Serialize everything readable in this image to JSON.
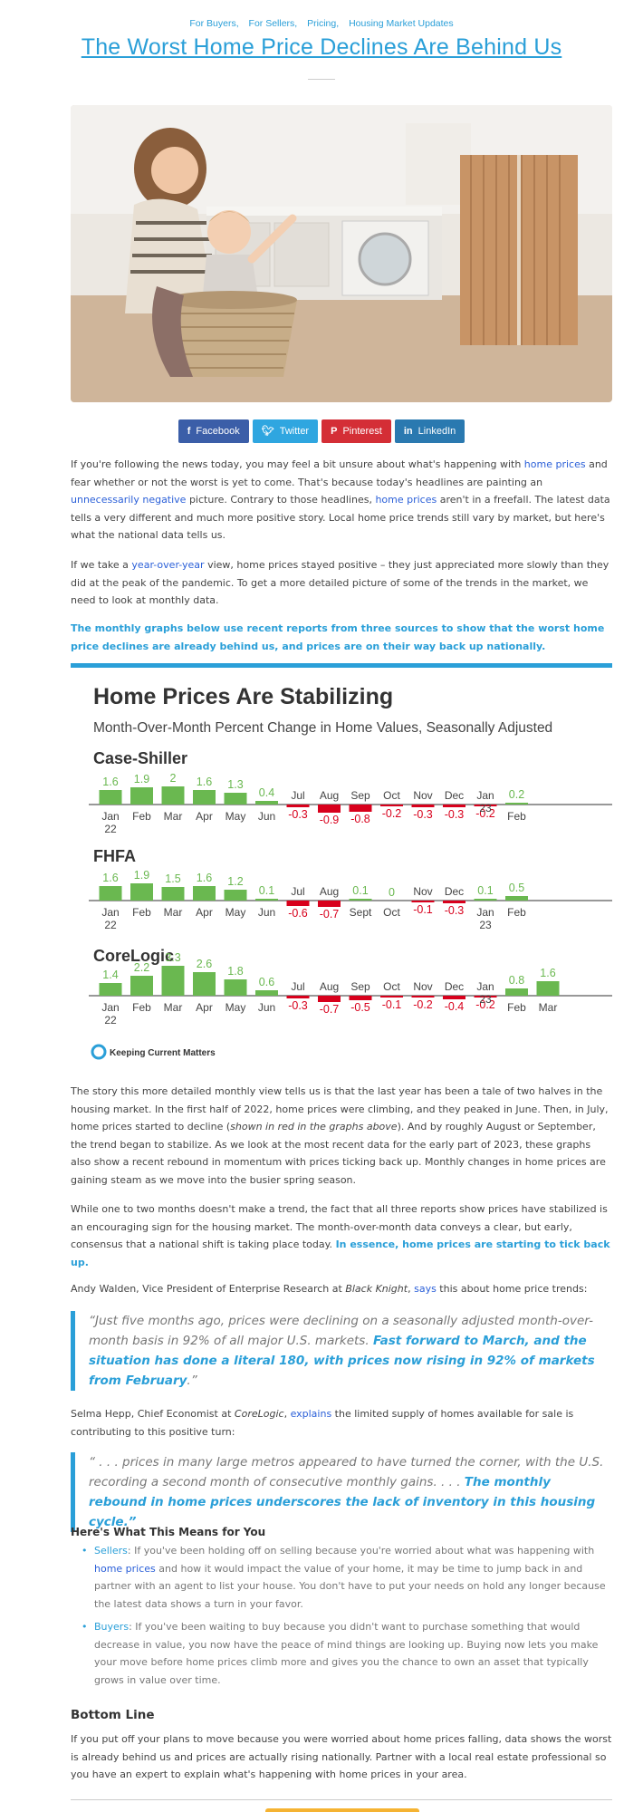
{
  "categories": [
    "For Buyers,",
    "For Sellers,",
    "Pricing,",
    "Housing Market Updates"
  ],
  "title": "The Worst Home Price Declines Are Behind Us",
  "share": {
    "facebook": "Facebook",
    "twitter": "Twitter",
    "pinterest": "Pinterest",
    "linkedin": "LinkedIn",
    "icons": [
      "facebook-icon",
      "twitter-icon",
      "pinterest-icon",
      "linkedin-icon"
    ]
  },
  "p1": {
    "a": "If you're following the news today, you may feel a bit unsure about what's happening with ",
    "link1": "home prices",
    "b": " and fear whether or not the worst is yet to come. That's because today's headlines are painting an ",
    "link2": "unnecessarily negative",
    "c": " picture. Contrary to those headlines, ",
    "link3": "home prices",
    "d": " aren't in a freefall. The latest data tells a very different and much more positive story. Local home price trends still vary by market, but here's what the national data tells us."
  },
  "p2": {
    "a": "If we take a ",
    "link": "year-over-year",
    "b": " view, home prices stayed positive – they just appreciated more slowly than they did at the peak of the pandemic. To get a more detailed picture of some of the trends in the market, we need to look at monthly data."
  },
  "p3": "The monthly graphs below use recent reports from three sources to show that the worst home price declines are already behind us, and prices are on their way back up nationally.",
  "chart_data": {
    "type": "bar",
    "title": "Home Prices Are Stabilizing",
    "subtitle": "Month-Over-Month Percent Change in Home Values, Seasonally Adjusted",
    "brand": "Keeping Current Matters",
    "colors": {
      "positive": "#6ab850",
      "negative": "#d8001c"
    },
    "panels": [
      {
        "name": "Case-Shiller",
        "categories": [
          "Jan 22",
          "Feb",
          "Mar",
          "Apr",
          "May",
          "Jun",
          "Jul",
          "Aug",
          "Sep",
          "Oct",
          "Nov",
          "Dec",
          "Jan 23",
          "Feb"
        ],
        "labels": [
          "1.6",
          "1.9",
          "2",
          "1.6",
          "1.3",
          "0.4",
          "-0.3",
          "-0.9",
          "-0.8",
          "-0.2",
          "-0.3",
          "-0.3",
          "-0.2",
          "0.2"
        ],
        "values": [
          1.6,
          1.9,
          2,
          1.6,
          1.3,
          0.4,
          -0.3,
          -0.9,
          -0.8,
          -0.2,
          -0.3,
          -0.3,
          -0.2,
          0.2
        ]
      },
      {
        "name": "FHFA",
        "categories": [
          "Jan 22",
          "Feb",
          "Mar",
          "Apr",
          "May",
          "Jun",
          "Jul",
          "Aug",
          "Sept",
          "Oct",
          "Nov",
          "Dec",
          "Jan 23",
          "Feb"
        ],
        "labels": [
          "1.6",
          "1.9",
          "1.5",
          "1.6",
          "1.2",
          "0.1",
          "-0.6",
          "-0.7",
          "0.1",
          "0",
          "-0.1",
          "-0.3",
          "0.1",
          "0.5"
        ],
        "values": [
          1.6,
          1.9,
          1.5,
          1.6,
          1.2,
          0.1,
          -0.6,
          -0.7,
          0.1,
          0,
          -0.1,
          -0.3,
          0.1,
          0.5
        ]
      },
      {
        "name": "CoreLogic",
        "categories": [
          "Jan 22",
          "Feb",
          "Mar",
          "Apr",
          "May",
          "Jun",
          "Jul",
          "Aug",
          "Sep",
          "Oct",
          "Nov",
          "Dec",
          "Jan 23",
          "Feb",
          "Mar"
        ],
        "labels": [
          "1.4",
          "2.2",
          "3.3",
          "2.6",
          "1.8",
          "0.6",
          "-0.3",
          "-0.7",
          "-0.5",
          "-0.1",
          "-0.2",
          "-0.4",
          "-0.2",
          "0.8",
          "1.6"
        ],
        "values": [
          1.4,
          2.2,
          3.3,
          2.6,
          1.8,
          0.6,
          -0.3,
          -0.7,
          -0.5,
          -0.1,
          -0.2,
          -0.4,
          -0.2,
          0.8,
          1.6
        ]
      }
    ]
  },
  "p4": {
    "a": "The story this more detailed monthly view tells us is that the last year has been a tale of two halves in the housing market. In the first half of 2022, home prices were climbing, and they peaked in June. Then, in July, home prices started to decline (",
    "em": "shown in red in the graphs above",
    "b": "). And by roughly August or September, the trend began to stabilize. As we look at the most recent data for the early part of 2023, these graphs also show a recent rebound in momentum with prices ticking back up. Monthly changes in home prices are gaining steam as we move into the busier spring season."
  },
  "p5": {
    "a": "While one to two months doesn't make a trend, the fact that all three reports show prices have stabilized is an encouraging sign for the housing market. The month-over-month data conveys a clear, but early, consensus that a national shift is taking place today. ",
    "hl": "In essence, home prices are starting to tick back up."
  },
  "p6": {
    "a": "Andy Walden, Vice President of Enterprise Research at ",
    "em": "Black Knight",
    "b": ", ",
    "link": "says",
    "c": " this about home price trends:"
  },
  "q1": {
    "a": "“Just five months ago, prices were declining on a seasonally adjusted month-over-month basis in 92% of all major U.S. markets. ",
    "hl": "Fast forward to March, and the situation has done a literal 180, with prices now rising in 92% of markets from February",
    "b": ".”"
  },
  "p7": {
    "a": "Selma Hepp, Chief Economist at ",
    "em": "CoreLogic",
    "b": ", ",
    "link": "explains",
    "c": " the limited supply of homes available for sale is contributing to this positive turn:"
  },
  "q2": {
    "a": "“ . . . prices in many large metros appeared to have turned the corner, with the U.S. recording a second month of consecutive monthly gains. . . . ",
    "hl": "The monthly rebound in home prices underscores the lack of inventory in this housing cycle.”"
  },
  "h_means": "Here's What This Means for You",
  "sellers": {
    "label": "Sellers",
    "a": ": If you've been holding off on selling because you're worried about what was happening with ",
    "link": "home prices",
    "b": " and how it would impact the value of your home, it may be time to jump back in and partner with an agent to list your house. You don't have to put your needs on hold any longer because the latest data shows a turn in your favor."
  },
  "buyers": {
    "label": "Buyers",
    "a": ": If you've been waiting to buy because you didn't want to purchase something that would decrease in value, you now have the peace of mind things are looking up. Buying now lets you make your move before home prices climb more and gives you the chance to own an asset that typically grows in value over time."
  },
  "h_bottom": "Bottom Line",
  "p_bottom": "If you put off your plans to move because you were worried about home prices falling, data shows the worst is already behind us and prices are actually rising nationally. Partner with a local real estate professional so you have an expert to explain what's happening with home prices in your area."
}
